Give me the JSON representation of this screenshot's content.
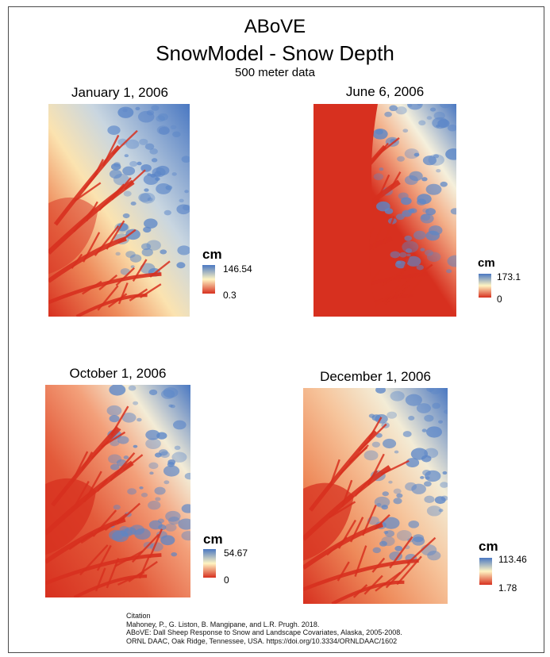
{
  "title": {
    "line1": "ABoVE",
    "line2": "SnowModel - Snow Depth",
    "line3": "500 meter data"
  },
  "colors": {
    "low": "#d7301f",
    "mid": "#fff4c2",
    "high": "#4a78c2"
  },
  "panels": [
    {
      "date": "January 1, 2006",
      "legend_unit": "cm",
      "max": "146.54",
      "min": "0.3"
    },
    {
      "date": "June 6, 2006",
      "legend_unit": "cm",
      "max": "173.1",
      "min": "0"
    },
    {
      "date": "October 1, 2006",
      "legend_unit": "cm",
      "max": "54.67",
      "min": "0"
    },
    {
      "date": "December 1, 2006",
      "legend_unit": "cm",
      "max": "113.46",
      "min": "1.78"
    }
  ],
  "citation": {
    "heading": "Citation",
    "line1": "Mahoney, P., G. Liston, B. Mangipane, and L.R. Prugh. 2018.",
    "line2": "ABoVE: Dall Sheep Response to Snow and Landscape Covariates, Alaska, 2005-2008.",
    "line3": "ORNL DAAC, Oak Ridge, Tennessee, USA. https://doi.org/10.3334/ORNLDAAC/1602"
  }
}
